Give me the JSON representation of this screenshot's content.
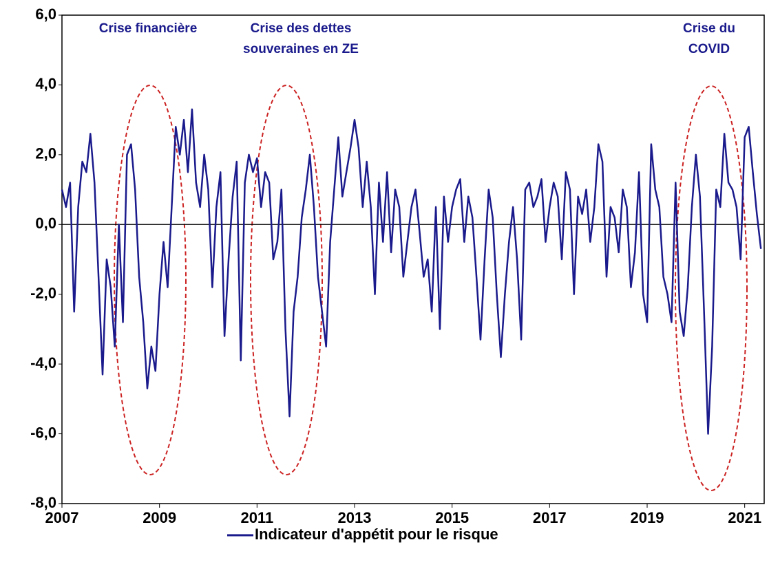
{
  "chart_data": {
    "type": "line",
    "annotations": [
      [
        "Crise financière"
      ],
      [
        "Crise des dettes",
        "souveraines en ZE"
      ],
      [
        "Crise du",
        "COVID"
      ]
    ],
    "x": [
      2007,
      2007.083,
      2007.167,
      2007.25,
      2007.333,
      2007.417,
      2007.5,
      2007.583,
      2007.667,
      2007.75,
      2007.833,
      2007.917,
      2008,
      2008.083,
      2008.167,
      2008.25,
      2008.333,
      2008.417,
      2008.5,
      2008.583,
      2008.667,
      2008.75,
      2008.833,
      2008.917,
      2009,
      2009.083,
      2009.167,
      2009.25,
      2009.333,
      2009.417,
      2009.5,
      2009.583,
      2009.667,
      2009.75,
      2009.833,
      2009.917,
      2010,
      2010.083,
      2010.167,
      2010.25,
      2010.333,
      2010.417,
      2010.5,
      2010.583,
      2010.667,
      2010.75,
      2010.833,
      2010.917,
      2011,
      2011.083,
      2011.167,
      2011.25,
      2011.333,
      2011.417,
      2011.5,
      2011.583,
      2011.667,
      2011.75,
      2011.833,
      2011.917,
      2012,
      2012.083,
      2012.167,
      2012.25,
      2012.333,
      2012.417,
      2012.5,
      2012.583,
      2012.667,
      2012.75,
      2012.833,
      2012.917,
      2013,
      2013.083,
      2013.167,
      2013.25,
      2013.333,
      2013.417,
      2013.5,
      2013.583,
      2013.667,
      2013.75,
      2013.833,
      2013.917,
      2014,
      2014.083,
      2014.167,
      2014.25,
      2014.333,
      2014.417,
      2014.5,
      2014.583,
      2014.667,
      2014.75,
      2014.833,
      2014.917,
      2015,
      2015.083,
      2015.167,
      2015.25,
      2015.333,
      2015.417,
      2015.5,
      2015.583,
      2015.667,
      2015.75,
      2015.833,
      2015.917,
      2016,
      2016.083,
      2016.167,
      2016.25,
      2016.333,
      2016.417,
      2016.5,
      2016.583,
      2016.667,
      2016.75,
      2016.833,
      2016.917,
      2017,
      2017.083,
      2017.167,
      2017.25,
      2017.333,
      2017.417,
      2017.5,
      2017.583,
      2017.667,
      2017.75,
      2017.833,
      2017.917,
      2018,
      2018.083,
      2018.167,
      2018.25,
      2018.333,
      2018.417,
      2018.5,
      2018.583,
      2018.667,
      2018.75,
      2018.833,
      2018.917,
      2019,
      2019.083,
      2019.167,
      2019.25,
      2019.333,
      2019.417,
      2019.5,
      2019.583,
      2019.667,
      2019.75,
      2019.833,
      2019.917,
      2020,
      2020.083,
      2020.167,
      2020.25,
      2020.333,
      2020.417,
      2020.5,
      2020.583,
      2020.667,
      2020.75,
      2020.833,
      2020.917,
      2021,
      2021.083,
      2021.167,
      2021.25,
      2021.333
    ],
    "series": [
      {
        "name": "Indicateur d'appétit pour le risque",
        "color": "#1a1a8c",
        "values": [
          1.0,
          0.5,
          1.2,
          -2.5,
          0.5,
          1.8,
          1.5,
          2.6,
          1.2,
          -1.5,
          -4.3,
          -1.0,
          -1.8,
          -3.5,
          0.0,
          -2.8,
          2.0,
          2.3,
          1.0,
          -1.5,
          -2.8,
          -4.7,
          -3.5,
          -4.2,
          -2.0,
          -0.5,
          -1.8,
          0.5,
          2.8,
          2.0,
          3.0,
          1.5,
          3.3,
          1.2,
          0.5,
          2.0,
          1.0,
          -1.8,
          0.5,
          1.5,
          -3.2,
          -1.0,
          0.8,
          1.8,
          -3.9,
          1.2,
          2.0,
          1.5,
          1.9,
          0.5,
          1.5,
          1.2,
          -1.0,
          -0.5,
          1.0,
          -3.0,
          -5.5,
          -2.5,
          -1.5,
          0.2,
          1.0,
          2.0,
          0.5,
          -1.5,
          -2.5,
          -3.5,
          -0.5,
          1.0,
          2.5,
          0.8,
          1.5,
          2.2,
          3.0,
          2.2,
          0.5,
          1.8,
          0.5,
          -2.0,
          1.2,
          -0.5,
          1.5,
          -0.8,
          1.0,
          0.5,
          -1.5,
          -0.5,
          0.5,
          1.0,
          -0.2,
          -1.5,
          -1.0,
          -2.5,
          0.5,
          -3.0,
          0.8,
          -0.5,
          0.5,
          1.0,
          1.3,
          -0.5,
          0.8,
          0.2,
          -1.5,
          -3.3,
          -1.0,
          1.0,
          0.2,
          -2.0,
          -3.8,
          -2.0,
          -0.5,
          0.5,
          -1.0,
          -3.3,
          1.0,
          1.2,
          0.5,
          0.8,
          1.3,
          -0.5,
          0.5,
          1.2,
          0.8,
          -1.0,
          1.5,
          1.0,
          -2.0,
          0.8,
          0.3,
          1.0,
          -0.5,
          0.5,
          2.3,
          1.8,
          -1.5,
          0.5,
          0.2,
          -0.8,
          1.0,
          0.5,
          -1.8,
          -0.8,
          1.5,
          -2.0,
          -2.8,
          2.3,
          1.0,
          0.5,
          -1.5,
          -2.0,
          -2.8,
          1.2,
          -2.5,
          -3.2,
          -1.8,
          0.5,
          2.0,
          0.8,
          -2.5,
          -6.0,
          -3.5,
          1.0,
          0.5,
          2.6,
          1.2,
          1.0,
          0.5,
          -1.0,
          2.5,
          2.8,
          1.5,
          0.3,
          -0.7
        ]
      }
    ],
    "xlim": [
      2007,
      2021.4
    ],
    "ylim": [
      -8,
      6
    ],
    "xticks": [
      2007,
      2009,
      2011,
      2013,
      2015,
      2017,
      2019,
      2021
    ],
    "yticks": [
      {
        "value": 6,
        "label": "6,0"
      },
      {
        "value": 4,
        "label": "4,0"
      },
      {
        "value": 2,
        "label": "2,0"
      },
      {
        "value": 0,
        "label": "0,0"
      },
      {
        "value": -2,
        "label": "-2,0"
      },
      {
        "value": -4,
        "label": "-4,0"
      },
      {
        "value": -6,
        "label": "-6,0"
      },
      {
        "value": -8,
        "label": "-8,0"
      }
    ],
    "zero_line": true
  }
}
